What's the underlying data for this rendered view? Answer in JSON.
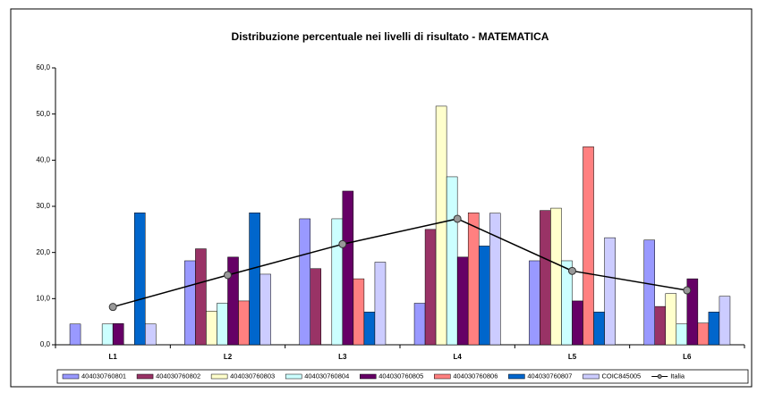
{
  "chart_data": {
    "type": "bar",
    "title": "Distribuzione percentuale nei livelli di risultato - MATEMATICA",
    "categories": [
      "L1",
      "L2",
      "L3",
      "L4",
      "L5",
      "L6"
    ],
    "ylim": [
      0,
      60
    ],
    "yticks": [
      {
        "value": 0,
        "label": "0,0"
      },
      {
        "value": 10,
        "label": "10,0"
      },
      {
        "value": 20,
        "label": "20,0"
      },
      {
        "value": 30,
        "label": "30,0"
      },
      {
        "value": 40,
        "label": "40,0"
      },
      {
        "value": 50,
        "label": "50,0"
      },
      {
        "value": 60,
        "label": "60,0"
      }
    ],
    "grid": false,
    "legend": "bottom",
    "series": [
      {
        "name": "404030760801",
        "color": "#9999ff",
        "values": [
          4.5,
          18.2,
          27.3,
          9.0,
          18.2,
          22.7
        ]
      },
      {
        "name": "404030760802",
        "color": "#993366",
        "values": [
          0,
          20.8,
          16.5,
          25.0,
          29.1,
          8.3
        ]
      },
      {
        "name": "404030760803",
        "color": "#ffffcc",
        "values": [
          0,
          7.3,
          0,
          51.7,
          29.6,
          11.1
        ]
      },
      {
        "name": "404030760804",
        "color": "#ccffff",
        "values": [
          4.5,
          9.0,
          27.3,
          36.4,
          18.2,
          4.5
        ]
      },
      {
        "name": "404030760805",
        "color": "#660066",
        "values": [
          4.6,
          19.0,
          33.3,
          19.0,
          9.5,
          14.3
        ]
      },
      {
        "name": "404030760806",
        "color": "#ff8080",
        "values": [
          0,
          9.5,
          14.3,
          28.6,
          42.9,
          4.7
        ]
      },
      {
        "name": "404030760807",
        "color": "#0066cc",
        "values": [
          28.6,
          28.6,
          7.1,
          21.4,
          7.1,
          7.1
        ]
      },
      {
        "name": "COIC845005",
        "color": "#ccccff",
        "values": [
          4.5,
          15.3,
          17.9,
          28.5,
          23.2,
          10.5
        ]
      },
      {
        "name": "Italia",
        "color": "#000000",
        "type": "line",
        "values": [
          8.2,
          15.1,
          21.8,
          27.3,
          16.0,
          11.8
        ]
      }
    ]
  }
}
